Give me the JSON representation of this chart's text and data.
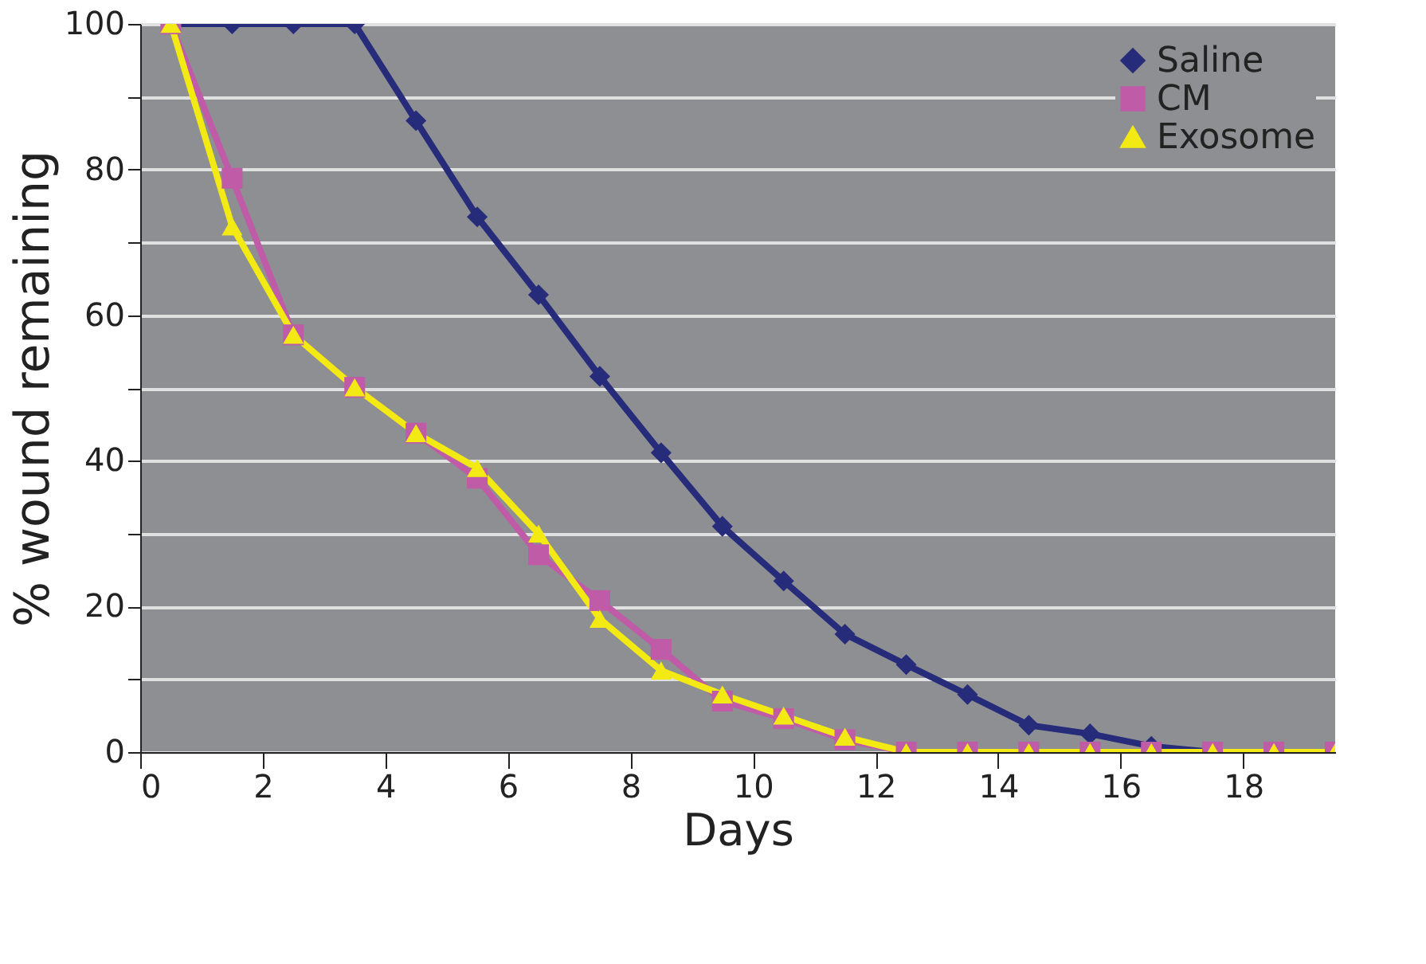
{
  "chart_data": {
    "type": "line",
    "xlabel": "Days",
    "ylabel": "% wound remaining",
    "x": [
      0.5,
      1.5,
      2.5,
      3.5,
      4.5,
      5.5,
      6.5,
      7.5,
      8.5,
      9.5,
      10.5,
      11.5,
      12.5,
      13.5,
      14.5,
      15.5,
      16.5,
      17.5,
      18.5,
      19.5
    ],
    "series": [
      {
        "name": "Saline",
        "color": "#262b7a",
        "marker": "diamond",
        "values": [
          100,
          100,
          100,
          100,
          86.7,
          73.5,
          62.8,
          51.6,
          41.1,
          31,
          23.5,
          16.2,
          12,
          7.9,
          3.7,
          2.5,
          0.8,
          0,
          0,
          0
        ]
      },
      {
        "name": "CM",
        "color": "#c05ba8",
        "marker": "square",
        "values": [
          100,
          78.8,
          57.3,
          50.1,
          43.8,
          37.6,
          27.1,
          20.8,
          14.1,
          7,
          4.6,
          1.7,
          0,
          0,
          0,
          0,
          0,
          0,
          0,
          0
        ]
      },
      {
        "name": "Exosome",
        "color": "#f2ea12",
        "marker": "triangle",
        "values": [
          100,
          72.2,
          57.3,
          50.1,
          43.8,
          39,
          30,
          18.3,
          11.2,
          7.9,
          5,
          2.1,
          0,
          0,
          0,
          0,
          0,
          0,
          0,
          0
        ]
      }
    ],
    "xlim": [
      0,
      19.5
    ],
    "xticks": [
      0,
      2,
      4,
      6,
      8,
      10,
      12,
      14,
      16,
      18
    ],
    "ylim": [
      0,
      100
    ],
    "yticks": [
      0,
      {
        "value": 10,
        "label": null
      },
      20,
      {
        "value": 30,
        "label": null
      },
      40,
      {
        "value": 50,
        "label": null
      },
      60,
      {
        "value": 70,
        "label": null
      },
      80,
      {
        "value": 90,
        "label": null
      },
      100
    ],
    "grid": "y",
    "legend": "top right",
    "line_style": "solid"
  }
}
